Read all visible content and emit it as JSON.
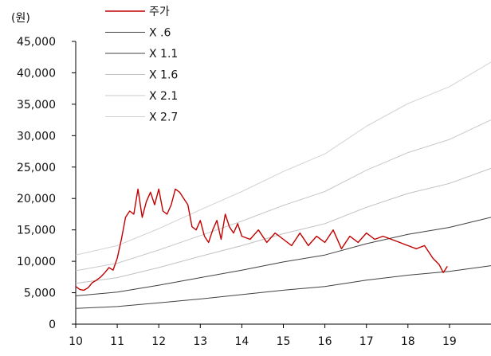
{
  "chart_data": {
    "type": "line",
    "title": "",
    "unit_label": "(원)",
    "xlabel": "",
    "ylabel": "",
    "xlim": [
      10,
      20
    ],
    "ylim": [
      0,
      45000
    ],
    "x_ticks": [
      10,
      11,
      12,
      13,
      14,
      15,
      16,
      17,
      18,
      19
    ],
    "x_tick_labels": [
      "10",
      "11",
      "12",
      "13",
      "14",
      "15",
      "16",
      "17",
      "18",
      "19"
    ],
    "y_ticks": [
      0,
      5000,
      10000,
      15000,
      20000,
      25000,
      30000,
      35000,
      40000,
      45000
    ],
    "y_tick_labels": [
      "0",
      "5,000",
      "10,000",
      "15,000",
      "20,000",
      "25,000",
      "30,000",
      "35,000",
      "40,000",
      "45,000"
    ],
    "grid": false,
    "legend_position": "top-left",
    "series": [
      {
        "name": "주가",
        "color": "#c00000",
        "x": [
          10.0,
          10.1,
          10.2,
          10.3,
          10.4,
          10.5,
          10.6,
          10.7,
          10.8,
          10.9,
          11.0,
          11.1,
          11.2,
          11.3,
          11.4,
          11.5,
          11.6,
          11.7,
          11.8,
          11.9,
          12.0,
          12.1,
          12.2,
          12.3,
          12.4,
          12.5,
          12.6,
          12.7,
          12.8,
          12.9,
          13.0,
          13.1,
          13.2,
          13.3,
          13.4,
          13.5,
          13.6,
          13.7,
          13.8,
          13.9,
          14.0,
          14.2,
          14.4,
          14.6,
          14.8,
          15.0,
          15.2,
          15.4,
          15.6,
          15.8,
          16.0,
          16.2,
          16.4,
          16.6,
          16.8,
          17.0,
          17.2,
          17.4,
          17.6,
          17.8,
          18.0,
          18.2,
          18.4,
          18.6,
          18.75,
          18.85,
          18.95
        ],
        "values": [
          6000,
          5500,
          5400,
          5800,
          6600,
          7000,
          7500,
          8200,
          9000,
          8600,
          10500,
          13500,
          17000,
          18000,
          17500,
          21500,
          17000,
          19500,
          21000,
          19000,
          21500,
          18000,
          17500,
          19000,
          21500,
          21000,
          20000,
          19000,
          15500,
          15000,
          16500,
          14000,
          13000,
          15000,
          16500,
          13500,
          17500,
          15500,
          14500,
          16000,
          14000,
          13500,
          15000,
          13000,
          14500,
          13500,
          12500,
          14500,
          12500,
          14000,
          13000,
          15000,
          12000,
          14000,
          13000,
          14500,
          13500,
          14000,
          13500,
          13000,
          12500,
          12000,
          12500,
          10500,
          9500,
          8200,
          9200
        ]
      },
      {
        "name": "X .6",
        "color": "#404040",
        "x": [
          10,
          11,
          12,
          13,
          14,
          15,
          16,
          17,
          18,
          19,
          20
        ],
        "values": [
          2500,
          2800,
          3400,
          4000,
          4700,
          5400,
          6000,
          7000,
          7800,
          8400,
          9300
        ]
      },
      {
        "name": "X 1.1",
        "color": "#404040",
        "x": [
          10,
          11,
          12,
          13,
          14,
          15,
          16,
          17,
          18,
          19,
          20
        ],
        "values": [
          4500,
          5100,
          6200,
          7400,
          8600,
          9900,
          11000,
          12800,
          14300,
          15400,
          17000
        ]
      },
      {
        "name": "X 1.6",
        "color": "#c0c0c0",
        "x": [
          10,
          11,
          12,
          13,
          14,
          15,
          16,
          17,
          18,
          19,
          20
        ],
        "values": [
          6500,
          7400,
          9000,
          10800,
          12500,
          14400,
          16000,
          18600,
          20800,
          22400,
          24800
        ]
      },
      {
        "name": "X 2.1",
        "color": "#c8c8c8",
        "x": [
          10,
          11,
          12,
          13,
          14,
          15,
          16,
          17,
          18,
          19,
          20
        ],
        "values": [
          8500,
          9700,
          11800,
          14100,
          16400,
          18900,
          21100,
          24500,
          27300,
          29400,
          32500
        ]
      },
      {
        "name": "X 2.7",
        "color": "#d2d2d2",
        "x": [
          10,
          11,
          12,
          13,
          14,
          15,
          16,
          17,
          18,
          19,
          20
        ],
        "values": [
          11000,
          12500,
          15200,
          18200,
          21100,
          24300,
          27100,
          31500,
          35100,
          37800,
          41700
        ]
      }
    ]
  }
}
